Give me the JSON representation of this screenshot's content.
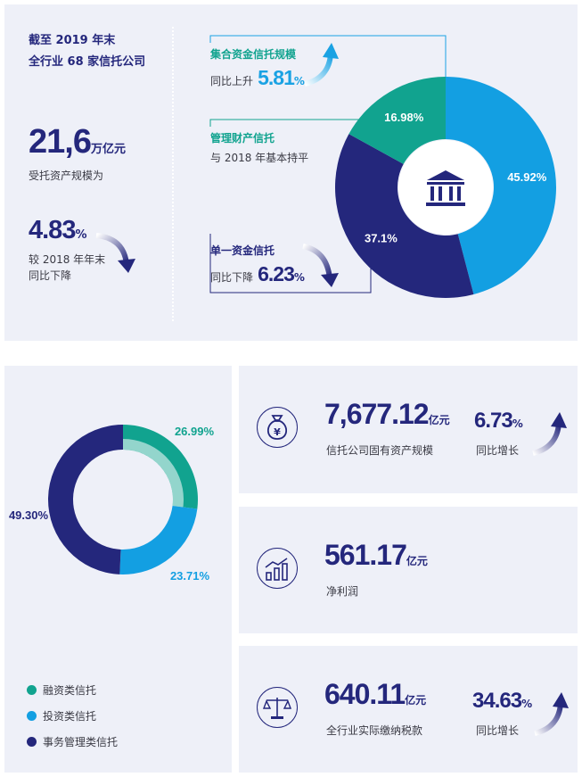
{
  "top": {
    "intro_line1": "截至 2019 年末",
    "intro_line2": "全行业 68 家信托公司",
    "scale_value": "21,6",
    "scale_unit": "万亿元",
    "scale_caption": "受托资产规模为",
    "drop_value": "4.83",
    "drop_unit": "%",
    "drop_caption1": "较 2018 年年末",
    "drop_caption2": "同比下降",
    "collective_title": "集合资金信托规模",
    "collective_prefix": "同比上升",
    "collective_value": "5.81",
    "collective_unit": "%",
    "mgmt_title": "管理财产信托",
    "mgmt_caption": "与 2018 年基本持平",
    "single_title": "单一资金信托",
    "single_prefix": "同比下降",
    "single_value": "6.23",
    "single_unit": "%"
  },
  "bottom": {
    "legend": [
      "融资类信托",
      "投资类信托",
      "事务管理类信托"
    ],
    "stat1_value": "7,677.12",
    "stat1_unit": "亿元",
    "stat1_caption": "信托公司固有资产规模",
    "stat1_growth": "6.73",
    "stat1_growth_unit": "%",
    "stat1_growth_caption": "同比增长",
    "stat2_value": "561.17",
    "stat2_unit": "亿元",
    "stat2_caption": "净利润",
    "stat3_value": "640.11",
    "stat3_unit": "亿元",
    "stat3_caption": "全行业实际缴纳税款",
    "stat3_growth": "34.63",
    "stat3_growth_unit": "%",
    "stat3_growth_caption": "同比增长",
    "money_symbol": "¥"
  },
  "chart_data": [
    {
      "type": "pie",
      "categories": [
        "集合资金信托",
        "单一资金信托",
        "管理财产信托"
      ],
      "values": [
        45.92,
        37.1,
        16.98
      ],
      "labels": [
        "45.92%",
        "37.1%",
        "16.98%"
      ],
      "colors": [
        "#139fe2",
        "#24277c",
        "#11a38f"
      ]
    },
    {
      "type": "pie",
      "categories": [
        "融资类信托",
        "投资类信托",
        "事务管理类信托"
      ],
      "values": [
        26.99,
        23.71,
        49.3
      ],
      "labels": [
        "26.99%",
        "23.71%",
        "49.30%"
      ],
      "colors": [
        "#11a38f",
        "#139fe2",
        "#24277c"
      ]
    }
  ]
}
